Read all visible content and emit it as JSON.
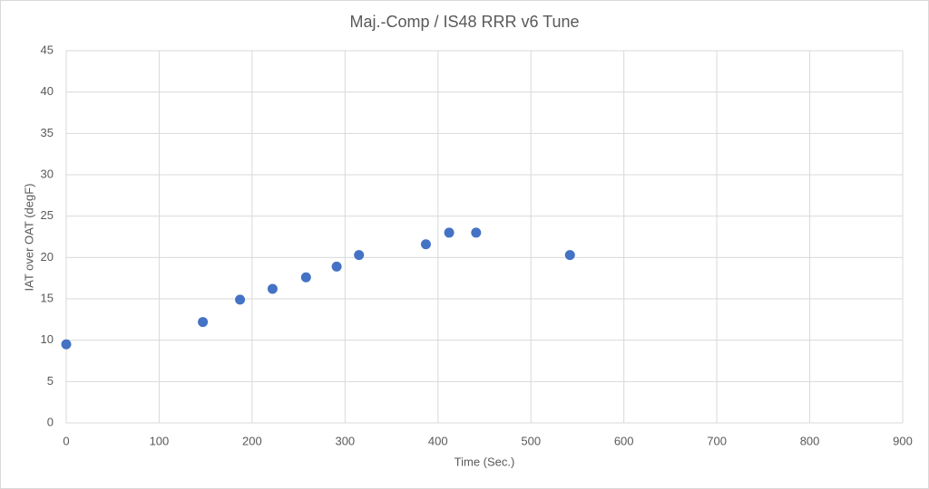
{
  "chart_data": {
    "type": "scatter",
    "title": "Maj.-Comp / IS48 RRR v6 Tune",
    "x_label": "Time (Sec.)",
    "y_label": "IAT over OAT (degF)",
    "series": [
      {
        "color": "#4472c4",
        "x": [
          0,
          147,
          187,
          222,
          258,
          291,
          315,
          387,
          412,
          441,
          542
        ],
        "values": [
          9.5,
          12.2,
          14.9,
          16.2,
          17.6,
          18.9,
          20.3,
          21.6,
          23,
          23,
          20.3
        ]
      }
    ],
    "xlim": [
      0,
      900
    ],
    "xticks": [
      0,
      100,
      200,
      300,
      400,
      500,
      600,
      700,
      800,
      900
    ],
    "ylim": [
      0,
      45
    ],
    "yticks": [
      0,
      5,
      10,
      15,
      20,
      25,
      30,
      35,
      40,
      45
    ],
    "grid": true
  }
}
